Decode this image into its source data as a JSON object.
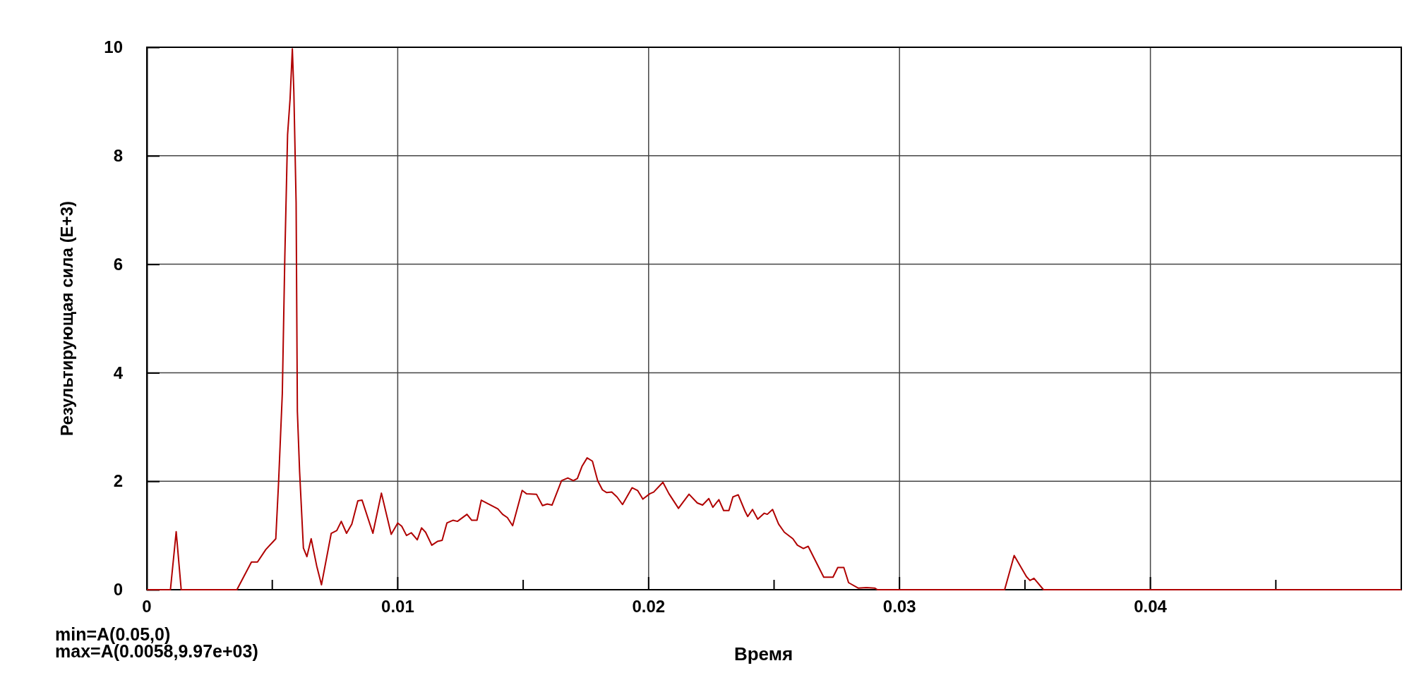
{
  "chart_data": {
    "type": "line",
    "xlabel": "Время",
    "ylabel": "Результирующая сила  (E+3)",
    "annotations": [
      "min=A(0.05,0)",
      "max=A(0.0058,9.97e+03)"
    ],
    "xlim": [
      0,
      0.05
    ],
    "ylim": [
      0,
      10
    ],
    "xticks": [
      0,
      {
        "value": 0.005,
        "label": null
      },
      0.01,
      {
        "value": 0.015,
        "label": null
      },
      0.02,
      {
        "value": 0.025,
        "label": null
      },
      0.03,
      {
        "value": 0.035,
        "label": null
      },
      0.04,
      {
        "value": 0.045,
        "label": null
      }
    ],
    "yticks": [
      0,
      2,
      4,
      6,
      8,
      10
    ],
    "grid": true,
    "marker": "none",
    "line_style": "solid",
    "series": [
      {
        "color": "#b00000",
        "x": [
          0,
          0.00094,
          0.00117,
          0.00137,
          0.00359,
          0.00417,
          0.00441,
          0.00474,
          0.00514,
          0.00525,
          0.0054,
          0.0055,
          0.00561,
          0.00571,
          0.0058,
          0.00586,
          0.00595,
          0.006,
          0.00609,
          0.00624,
          0.00638,
          0.00655,
          0.00677,
          0.00696,
          0.00735,
          0.00757,
          0.00775,
          0.00796,
          0.00817,
          0.00841,
          0.00858,
          0.00901,
          0.00935,
          0.00974,
          0.01,
          0.01016,
          0.01035,
          0.01054,
          0.01078,
          0.01095,
          0.01111,
          0.01136,
          0.01158,
          0.01177,
          0.01196,
          0.0122,
          0.01238,
          0.01276,
          0.01295,
          0.01316,
          0.01333,
          0.01399,
          0.01418,
          0.01437,
          0.01458,
          0.01496,
          0.01513,
          0.01553,
          0.01577,
          0.01596,
          0.01615,
          0.01653,
          0.01678,
          0.017,
          0.01716,
          0.01735,
          0.01755,
          0.01776,
          0.01797,
          0.01816,
          0.01833,
          0.01853,
          0.01874,
          0.01896,
          0.01934,
          0.01956,
          0.01977,
          0.02005,
          0.0202,
          0.02057,
          0.02081,
          0.02119,
          0.02161,
          0.02194,
          0.02215,
          0.0224,
          0.02256,
          0.0228,
          0.02299,
          0.0232,
          0.02336,
          0.02357,
          0.02384,
          0.02395,
          0.02414,
          0.02435,
          0.02461,
          0.02473,
          0.02494,
          0.02518,
          0.02541,
          0.02575,
          0.02593,
          0.02617,
          0.02636,
          0.02698,
          0.02735,
          0.02754,
          0.02778,
          0.02797,
          0.02835,
          0.02868,
          0.02901,
          0.02912,
          0.03419,
          0.03457,
          0.03506,
          0.0352,
          0.03536,
          0.03574,
          0.05
        ],
        "values": [
          0,
          0,
          1.07,
          0,
          0,
          0.51,
          0.51,
          0.74,
          0.94,
          1.97,
          3.62,
          6.14,
          8.39,
          9.05,
          9.97,
          9.17,
          7.13,
          3.29,
          2.17,
          0.77,
          0.61,
          0.94,
          0.44,
          0.09,
          1.04,
          1.09,
          1.26,
          1.04,
          1.21,
          1.64,
          1.65,
          1.04,
          1.78,
          1.02,
          1.23,
          1.17,
          1.0,
          1.05,
          0.92,
          1.14,
          1.06,
          0.82,
          0.89,
          0.91,
          1.23,
          1.28,
          1.26,
          1.39,
          1.28,
          1.28,
          1.65,
          1.49,
          1.39,
          1.33,
          1.18,
          1.83,
          1.77,
          1.76,
          1.55,
          1.58,
          1.56,
          2.01,
          2.06,
          2.01,
          2.05,
          2.28,
          2.43,
          2.37,
          2.01,
          1.84,
          1.79,
          1.8,
          1.71,
          1.57,
          1.88,
          1.83,
          1.67,
          1.77,
          1.8,
          1.98,
          1.77,
          1.5,
          1.76,
          1.6,
          1.56,
          1.68,
          1.52,
          1.66,
          1.46,
          1.46,
          1.71,
          1.75,
          1.45,
          1.35,
          1.48,
          1.3,
          1.41,
          1.39,
          1.48,
          1.21,
          1.06,
          0.94,
          0.82,
          0.76,
          0.8,
          0.23,
          0.23,
          0.41,
          0.41,
          0.13,
          0.03,
          0.04,
          0.03,
          0,
          0,
          0.63,
          0.24,
          0.17,
          0.21,
          0,
          0
        ]
      }
    ]
  }
}
